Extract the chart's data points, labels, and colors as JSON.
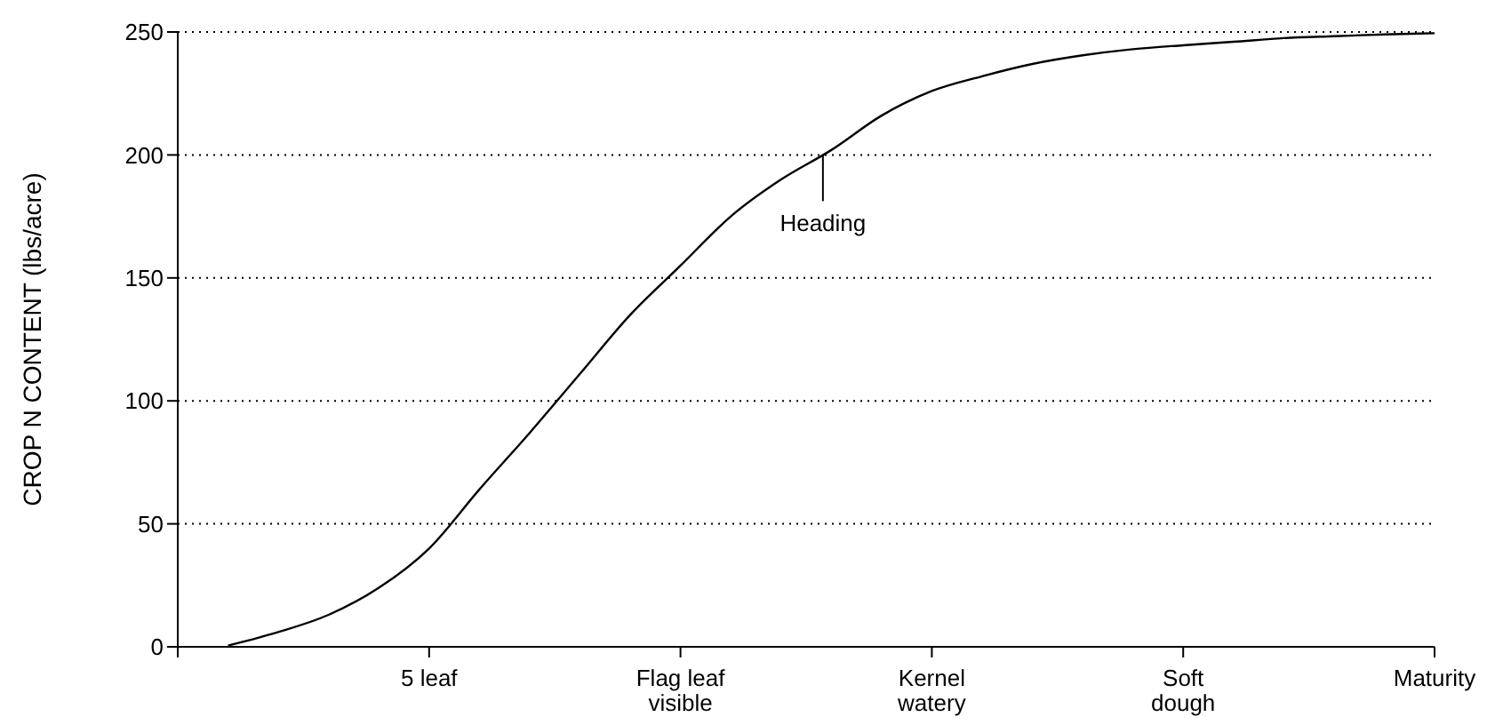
{
  "chart_data": {
    "type": "line",
    "ylabel": "CROP N CONTENT (lbs/acre)",
    "categories": [
      null,
      null,
      null,
      null,
      null,
      "5 leaf",
      null,
      null,
      null,
      null,
      "Flag leaf\nvisible",
      null,
      null,
      null,
      null,
      "Kernel\nwatery",
      null,
      null,
      null,
      null,
      "Soft\ndough",
      null,
      null,
      null,
      null,
      "Maturity"
    ],
    "series": [
      {
        "color": "#000000",
        "values": [
          null,
          0.5,
          6,
          13,
          24,
          40,
          64,
          87,
          111,
          135,
          155,
          175,
          190,
          202,
          216,
          226,
          232,
          237,
          240.5,
          243,
          244.6,
          246,
          247.5,
          248.3,
          249,
          249.5
        ]
      }
    ],
    "ylim": [
      0,
      250
    ],
    "yticks": [
      0,
      50,
      100,
      150,
      200,
      250
    ],
    "grid": "y",
    "marker": "none",
    "line_style": "solid",
    "legend": false,
    "annotations": [
      {
        "text": "Heading",
        "y": 200
      }
    ]
  }
}
